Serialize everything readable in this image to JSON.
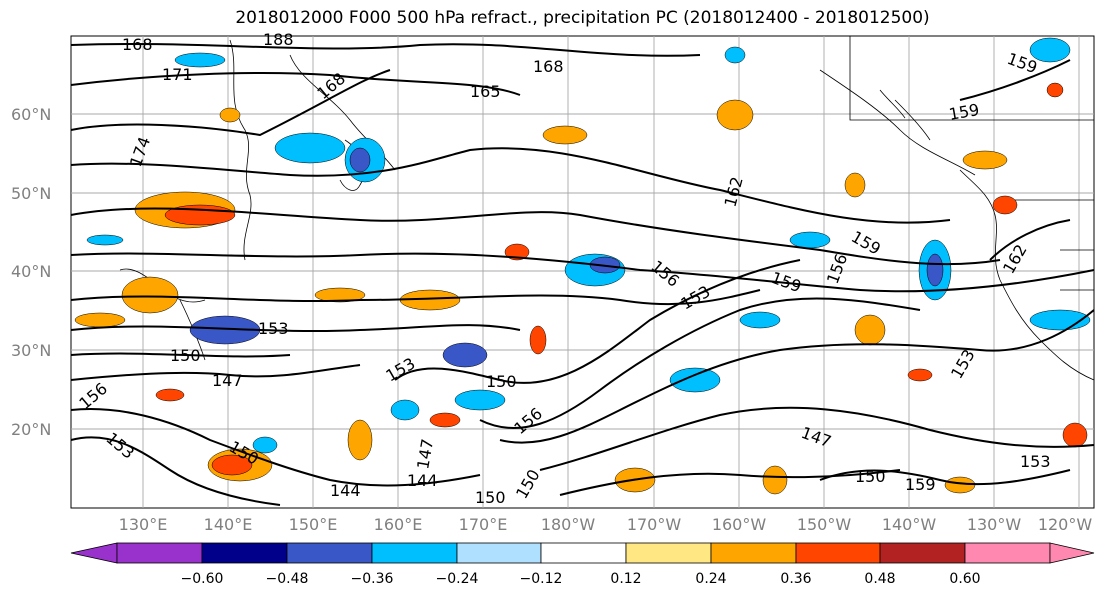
{
  "title": "2018012000 F000 500 hPa refract., precipitation PC (2018012400 - 2018012500)",
  "map": {
    "lat_labels": [
      "60°N",
      "50°N",
      "40°N",
      "30°N",
      "20°N"
    ],
    "lon_labels": [
      "130°E",
      "140°E",
      "150°E",
      "160°E",
      "170°E",
      "180°W",
      "170°W",
      "160°W",
      "150°W",
      "140°W",
      "130°W",
      "120°W"
    ],
    "contour_labels": [
      "168",
      "171",
      "168",
      "188",
      "168",
      "165",
      "174",
      "162",
      "159",
      "159",
      "159",
      "156",
      "156",
      "153",
      "153",
      "150",
      "153",
      "150",
      "147",
      "156",
      "153",
      "150",
      "147",
      "144",
      "144",
      "147",
      "150",
      "150",
      "153",
      "150",
      "162",
      "153",
      "159",
      "159",
      "156"
    ]
  },
  "colorbar": {
    "colors": [
      "#9932cc",
      "#00008b",
      "#3a57c8",
      "#00bfff",
      "#b0e0ff",
      "#ffffff",
      "#ffe883",
      "#ffa500",
      "#ff4500",
      "#b22222",
      "#ff88b0"
    ],
    "tick_labels": [
      "−0.60",
      "−0.48",
      "−0.36",
      "−0.24",
      "−0.12",
      "0.12",
      "0.24",
      "0.36",
      "0.48",
      "0.60"
    ]
  }
}
